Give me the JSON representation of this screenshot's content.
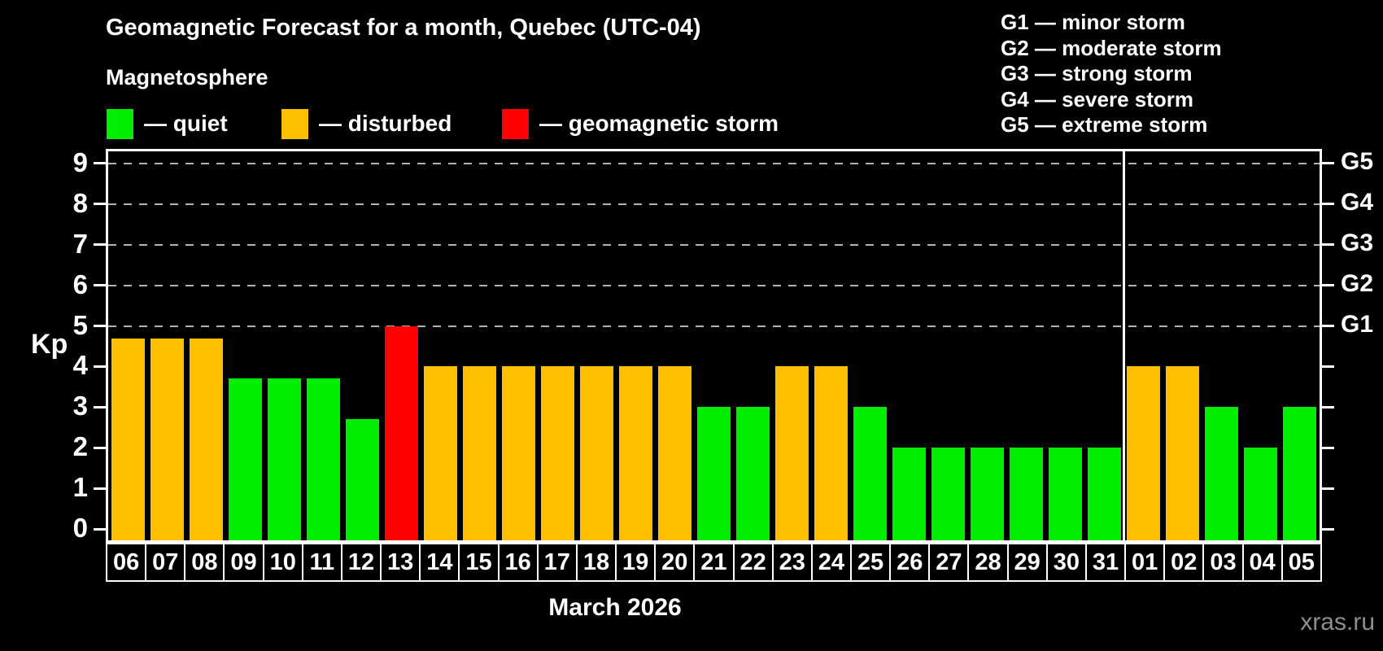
{
  "title": "Geomagnetic Forecast for a month, Quebec (UTC-04)",
  "subtitle": "Magnetosphere",
  "legend": {
    "quiet": "— quiet",
    "disturbed": "— disturbed",
    "storm": "— geomagnetic storm"
  },
  "g_legend": [
    "G1 — minor storm",
    "G2 — moderate storm",
    "G3 — strong storm",
    "G4 — severe storm",
    "G5 — extreme storm"
  ],
  "month_label": "March 2026",
  "watermark": "xras.ru",
  "colors": {
    "quiet": "#00ee00",
    "disturbed": "#ffc002",
    "storm": "#ff0000",
    "grid": "#b3b3b3",
    "watermark": "#8f8f8f"
  },
  "chart_data": {
    "type": "bar",
    "title": "Geomagnetic Forecast for a month, Quebec (UTC-04)",
    "xlabel": "March 2026",
    "ylabel": "Kp",
    "ylim": [
      0,
      9
    ],
    "yticks": [
      0,
      1,
      2,
      3,
      4,
      5,
      6,
      7,
      8,
      9
    ],
    "grid_levels": [
      5,
      6,
      7,
      8,
      9
    ],
    "right_axis_labels": [
      {
        "value": 5,
        "label": "G1"
      },
      {
        "value": 6,
        "label": "G2"
      },
      {
        "value": 7,
        "label": "G3"
      },
      {
        "value": 8,
        "label": "G4"
      },
      {
        "value": 9,
        "label": "G5"
      }
    ],
    "legend_position": "top-left",
    "grid": "dashed-horizontal",
    "month_divider_after_index": 25,
    "categories": [
      "06",
      "07",
      "08",
      "09",
      "10",
      "11",
      "12",
      "13",
      "14",
      "15",
      "16",
      "17",
      "18",
      "19",
      "20",
      "21",
      "22",
      "23",
      "24",
      "25",
      "26",
      "27",
      "28",
      "29",
      "30",
      "31",
      "01",
      "02",
      "03",
      "04",
      "05"
    ],
    "values": [
      4.7,
      4.7,
      4.7,
      3.7,
      3.7,
      3.7,
      2.7,
      5,
      4,
      4,
      4,
      4,
      4,
      4,
      4,
      3,
      3,
      4,
      4,
      3,
      2,
      2,
      2,
      2,
      2,
      2,
      4,
      4,
      3,
      2,
      3
    ],
    "states": [
      "disturbed",
      "disturbed",
      "disturbed",
      "quiet",
      "quiet",
      "quiet",
      "quiet",
      "storm",
      "disturbed",
      "disturbed",
      "disturbed",
      "disturbed",
      "disturbed",
      "disturbed",
      "disturbed",
      "quiet",
      "quiet",
      "disturbed",
      "disturbed",
      "quiet",
      "quiet",
      "quiet",
      "quiet",
      "quiet",
      "quiet",
      "quiet",
      "disturbed",
      "disturbed",
      "quiet",
      "quiet",
      "quiet"
    ]
  }
}
